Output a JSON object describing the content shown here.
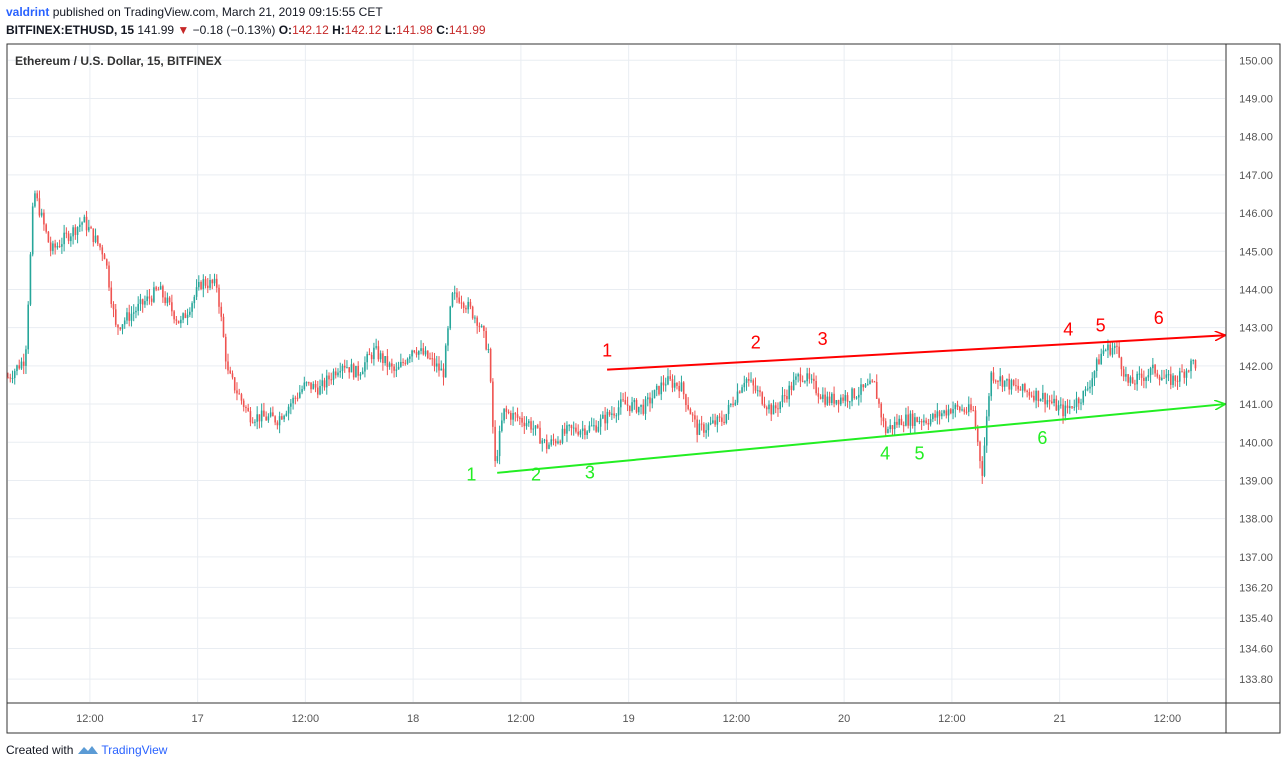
{
  "header": {
    "user": "valdrint",
    "published_text": "published on TradingView.com, March 21, 2019 09:15:55 CET",
    "symbol": "BITFINEX:ETHUSD, 15",
    "last": "141.99",
    "change": "−0.18 (−0.13%)",
    "o_label": "O:",
    "o_value": "142.12",
    "h_label": "H:",
    "h_value": "142.12",
    "l_label": "L:",
    "l_value": "141.98",
    "c_label": "C:",
    "c_value": "141.99"
  },
  "footer": {
    "created_with": "Created with",
    "brand": "TradingView"
  },
  "colors": {
    "up": "#26a69a",
    "down": "#ef5350",
    "resistance": "#ff0000",
    "support": "#22ee22",
    "grid": "#e9edf2",
    "axis_text": "#555555"
  },
  "chart_data": {
    "type": "candlestick",
    "title": "Ethereum / U.S. Dollar, 15, BITFINEX",
    "ylim": [
      133.2,
      150.4
    ],
    "y_ticks": [
      "150.00",
      "149.00",
      "148.00",
      "147.00",
      "146.00",
      "145.00",
      "144.00",
      "143.00",
      "142.00",
      "141.00",
      "140.00",
      "139.00",
      "138.00",
      "137.00",
      "136.20",
      "135.40",
      "134.60",
      "133.80"
    ],
    "x_ticks": [
      "12:00",
      "17",
      "12:00",
      "18",
      "12:00",
      "19",
      "12:00",
      "20",
      "12:00",
      "21",
      "12:00"
    ],
    "price_path": [
      {
        "t": 0.0,
        "p": 141.7
      },
      {
        "t": 0.08,
        "p": 142.2
      },
      {
        "t": 0.12,
        "p": 146.6
      },
      {
        "t": 0.2,
        "p": 145.0
      },
      {
        "t": 0.35,
        "p": 145.8
      },
      {
        "t": 0.45,
        "p": 144.9
      },
      {
        "t": 0.5,
        "p": 143.0
      },
      {
        "t": 0.62,
        "p": 143.6
      },
      {
        "t": 0.7,
        "p": 144.0
      },
      {
        "t": 0.8,
        "p": 143.1
      },
      {
        "t": 0.9,
        "p": 144.2
      },
      {
        "t": 0.97,
        "p": 144.1
      },
      {
        "t": 1.02,
        "p": 141.8
      },
      {
        "t": 1.12,
        "p": 140.7
      },
      {
        "t": 1.25,
        "p": 140.6
      },
      {
        "t": 1.38,
        "p": 141.5
      },
      {
        "t": 1.45,
        "p": 141.4
      },
      {
        "t": 1.55,
        "p": 142.1
      },
      {
        "t": 1.62,
        "p": 141.8
      },
      {
        "t": 1.7,
        "p": 142.4
      },
      {
        "t": 1.8,
        "p": 141.8
      },
      {
        "t": 1.88,
        "p": 142.5
      },
      {
        "t": 1.95,
        "p": 142.2
      },
      {
        "t": 2.02,
        "p": 141.8
      },
      {
        "t": 2.06,
        "p": 143.8
      },
      {
        "t": 2.1,
        "p": 143.8
      },
      {
        "t": 2.18,
        "p": 143.2
      },
      {
        "t": 2.23,
        "p": 142.4
      },
      {
        "t": 2.26,
        "p": 139.4
      },
      {
        "t": 2.3,
        "p": 140.8
      },
      {
        "t": 2.42,
        "p": 140.5
      },
      {
        "t": 2.5,
        "p": 139.9
      },
      {
        "t": 2.6,
        "p": 140.3
      },
      {
        "t": 2.72,
        "p": 140.4
      },
      {
        "t": 2.85,
        "p": 141.0
      },
      {
        "t": 2.95,
        "p": 140.9
      },
      {
        "t": 3.05,
        "p": 141.6
      },
      {
        "t": 3.12,
        "p": 141.5
      },
      {
        "t": 3.2,
        "p": 140.3
      },
      {
        "t": 3.32,
        "p": 140.6
      },
      {
        "t": 3.42,
        "p": 141.7
      },
      {
        "t": 3.55,
        "p": 140.8
      },
      {
        "t": 3.68,
        "p": 141.8
      },
      {
        "t": 3.8,
        "p": 141.1
      },
      {
        "t": 3.9,
        "p": 141.2
      },
      {
        "t": 4.02,
        "p": 141.5
      },
      {
        "t": 4.07,
        "p": 140.3
      },
      {
        "t": 4.15,
        "p": 140.6
      },
      {
        "t": 4.28,
        "p": 140.6
      },
      {
        "t": 4.38,
        "p": 140.9
      },
      {
        "t": 4.48,
        "p": 140.8
      },
      {
        "t": 4.52,
        "p": 139.2
      },
      {
        "t": 4.56,
        "p": 141.8
      },
      {
        "t": 4.68,
        "p": 141.4
      },
      {
        "t": 4.8,
        "p": 141.2
      },
      {
        "t": 4.9,
        "p": 140.8
      },
      {
        "t": 5.0,
        "p": 141.3
      },
      {
        "t": 5.08,
        "p": 142.4
      },
      {
        "t": 5.14,
        "p": 142.5
      },
      {
        "t": 5.2,
        "p": 141.5
      },
      {
        "t": 5.32,
        "p": 141.9
      },
      {
        "t": 5.38,
        "p": 141.6
      },
      {
        "t": 5.43,
        "p": 141.7
      },
      {
        "t": 5.5,
        "p": 142.1
      },
      {
        "t": 5.52,
        "p": 142.0
      }
    ],
    "trendlines": [
      {
        "name": "resistance",
        "from": {
          "t": 2.78,
          "p": 141.9
        },
        "to": {
          "t": 5.65,
          "p": 142.8
        }
      },
      {
        "name": "support",
        "from": {
          "t": 2.27,
          "p": 139.2
        },
        "to": {
          "t": 5.65,
          "p": 141.0
        }
      }
    ],
    "annotations": [
      {
        "text": "1",
        "line": "resistance",
        "t": 2.78,
        "p": 142.25
      },
      {
        "text": "2",
        "line": "resistance",
        "t": 3.47,
        "p": 142.45
      },
      {
        "text": "3",
        "line": "resistance",
        "t": 3.78,
        "p": 142.55
      },
      {
        "text": "4",
        "line": "resistance",
        "t": 4.92,
        "p": 142.8
      },
      {
        "text": "5",
        "line": "resistance",
        "t": 5.07,
        "p": 142.9
      },
      {
        "text": "6",
        "line": "resistance",
        "t": 5.34,
        "p": 143.1
      },
      {
        "text": "1",
        "line": "support",
        "t": 2.15,
        "p": 139.0
      },
      {
        "text": "2",
        "line": "support",
        "t": 2.45,
        "p": 139.0
      },
      {
        "text": "3",
        "line": "support",
        "t": 2.7,
        "p": 139.05
      },
      {
        "text": "4",
        "line": "support",
        "t": 4.07,
        "p": 139.55
      },
      {
        "text": "5",
        "line": "support",
        "t": 4.23,
        "p": 139.55
      },
      {
        "text": "6",
        "line": "support",
        "t": 4.8,
        "p": 139.95
      }
    ]
  }
}
